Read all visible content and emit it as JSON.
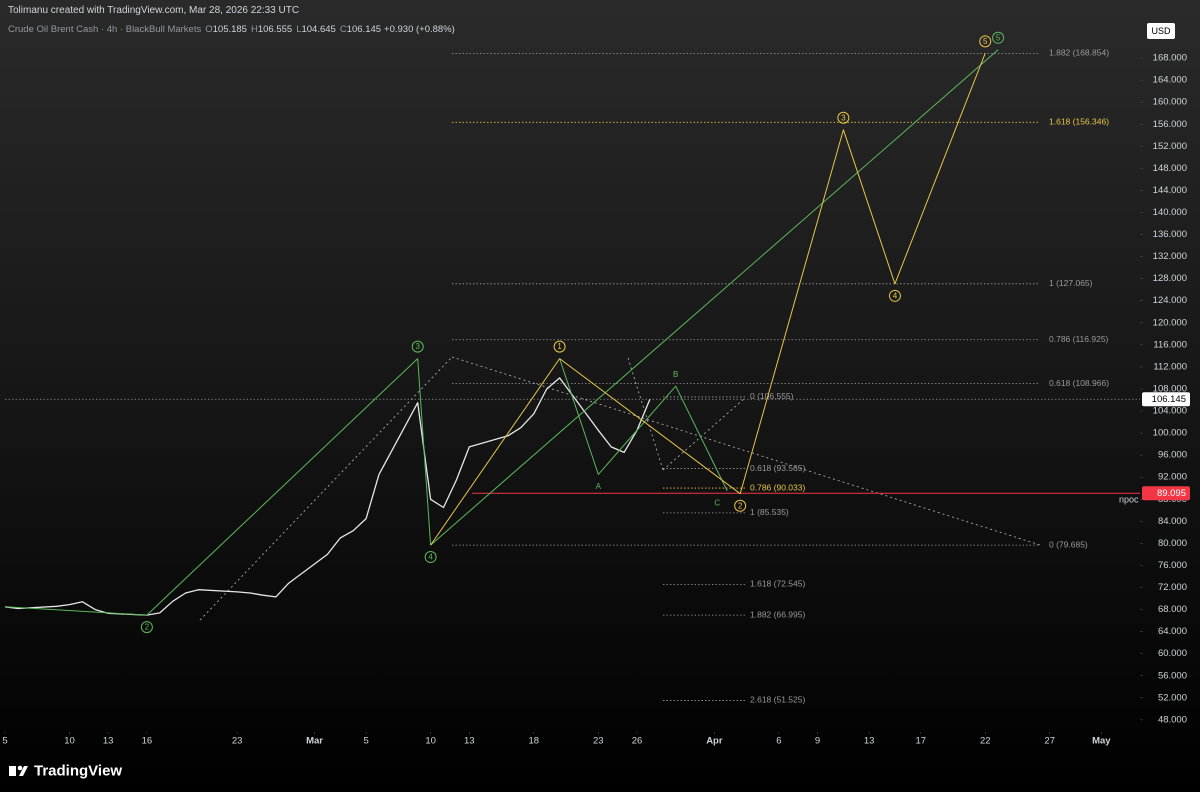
{
  "header": {
    "attribution": "Tolimanu created with TradingView.com, Mar 28, 2026 22:33 UTC",
    "symbol": "Crude Oil Brent Cash · 4h · BlackBull Markets",
    "ohlc": [
      {
        "key": "O",
        "value": "105.185"
      },
      {
        "key": "H",
        "value": "106.555"
      },
      {
        "key": "L",
        "value": "104.645"
      },
      {
        "key": "C",
        "value": "106.145"
      }
    ],
    "change": "+0.930 (+0.88%)"
  },
  "currency": "USD",
  "footer": {
    "brand": "TradingView"
  },
  "chart_data": {
    "type": "line",
    "xlim": [
      "Feb 5",
      "May 4"
    ],
    "xticks": [
      {
        "value": "Feb 5",
        "label": "5"
      },
      {
        "value": "Feb 10",
        "label": "10"
      },
      {
        "value": "Feb 13",
        "label": "13"
      },
      {
        "value": "Feb 16",
        "label": "16"
      },
      {
        "value": "Feb 23",
        "label": "23"
      },
      {
        "value": "Mar 1",
        "label": "Mar"
      },
      {
        "value": "Mar 5",
        "label": "5"
      },
      {
        "value": "Mar 10",
        "label": "10"
      },
      {
        "value": "Mar 13",
        "label": "13"
      },
      {
        "value": "Mar 18",
        "label": "18"
      },
      {
        "value": "Mar 23",
        "label": "23"
      },
      {
        "value": "Mar 26",
        "label": "26"
      },
      {
        "value": "Apr 1",
        "label": "Apr"
      },
      {
        "value": "Apr 6",
        "label": "6"
      },
      {
        "value": "Apr 9",
        "label": "9"
      },
      {
        "value": "Apr 13",
        "label": "13"
      },
      {
        "value": "Apr 17",
        "label": "17"
      },
      {
        "value": "Apr 22",
        "label": "22"
      },
      {
        "value": "Apr 27",
        "label": "27"
      },
      {
        "value": "May 1",
        "label": "May"
      }
    ],
    "ylim": [
      45.8,
      174.9
    ],
    "yticks": [
      {
        "value": 48,
        "label": "48.000"
      },
      {
        "value": 52,
        "label": "52.000"
      },
      {
        "value": 56,
        "label": "56.000"
      },
      {
        "value": 60,
        "label": "60.000"
      },
      {
        "value": 64,
        "label": "64.000"
      },
      {
        "value": 68,
        "label": "68.000"
      },
      {
        "value": 72,
        "label": "72.000"
      },
      {
        "value": 76,
        "label": "76.000"
      },
      {
        "value": 80,
        "label": "80.000"
      },
      {
        "value": 84,
        "label": "84.000"
      },
      {
        "value": 88,
        "label": "88.000"
      },
      {
        "value": 92,
        "label": "92.000"
      },
      {
        "value": 96,
        "label": "96.000"
      },
      {
        "value": 100,
        "label": "100.000"
      },
      {
        "value": 104,
        "label": "104.000"
      },
      {
        "value": 108,
        "label": "108.000"
      },
      {
        "value": 112,
        "label": "112.000"
      },
      {
        "value": 116,
        "label": "116.000"
      },
      {
        "value": 120,
        "label": "120.000"
      },
      {
        "value": 124,
        "label": "124.000"
      },
      {
        "value": 128,
        "label": "128.000"
      },
      {
        "value": 132,
        "label": "132.000"
      },
      {
        "value": 136,
        "label": "136.000"
      },
      {
        "value": 140,
        "label": "140.000"
      },
      {
        "value": 144,
        "label": "144.000"
      },
      {
        "value": 148,
        "label": "148.000"
      },
      {
        "value": 152,
        "label": "152.000"
      },
      {
        "value": 156,
        "label": "156.000"
      },
      {
        "value": 160,
        "label": "160.000"
      },
      {
        "value": 164,
        "label": "164.000"
      },
      {
        "value": 168,
        "label": "168.000"
      }
    ],
    "price": {
      "color": "#e6e6e6",
      "x": [
        "Feb 5",
        "Feb 6",
        "Feb 9",
        "Feb 10",
        "Feb 11",
        "Feb 12",
        "Feb 13",
        "Feb 16",
        "Feb 17",
        "Feb 18",
        "Feb 19",
        "Feb 20",
        "Feb 23",
        "Feb 24",
        "Feb 25",
        "Feb 26",
        "Feb 27",
        "Mar 2",
        "Mar 3",
        "Mar 4",
        "Mar 5",
        "Mar 6",
        "Mar 9",
        "Mar 10",
        "Mar 11",
        "Mar 12",
        "Mar 13",
        "Mar 16",
        "Mar 17",
        "Mar 18",
        "Mar 19",
        "Mar 20",
        "Mar 23",
        "Mar 24",
        "Mar 25",
        "Mar 26",
        "Mar 27"
      ],
      "values": [
        68.5,
        68.2,
        68.6,
        68.9,
        69.4,
        68.0,
        67.3,
        67.0,
        67.4,
        69.5,
        71.0,
        71.6,
        71.2,
        71.0,
        70.6,
        70.3,
        72.8,
        78.0,
        81.0,
        82.3,
        84.5,
        92.5,
        105.5,
        88.0,
        86.5,
        91.5,
        97.5,
        99.5,
        101.0,
        103.5,
        108.0,
        110.0,
        100.5,
        97.5,
        96.5,
        100.5,
        106.145
      ]
    },
    "waves": [
      {
        "color": "#5cb85c",
        "x": [
          "Feb 5",
          "Feb 16",
          "Mar 9",
          "Mar 10"
        ],
        "values": [
          68.5,
          67.0,
          113.5,
          79.7
        ],
        "labels": [
          null,
          "2",
          "3",
          "4"
        ]
      },
      {
        "color": "#5cb85c",
        "x": [
          "Mar 10",
          "Apr 23"
        ],
        "values": [
          79.685,
          169.5
        ],
        "labels": [
          null,
          "5"
        ]
      },
      {
        "color": "#5cb85c",
        "x": [
          "Mar 20",
          "Mar 23",
          "Mar 29",
          "Apr 2"
        ],
        "values": [
          113.5,
          92.5,
          108.5,
          89.5
        ],
        "labels": [
          null,
          "A",
          "B",
          "C"
        ]
      },
      {
        "color": "#e8c547",
        "x": [
          "Mar 10",
          "Mar 20",
          "Apr 3",
          "Apr 11",
          "Apr 15",
          "Apr 22"
        ],
        "values": [
          79.685,
          113.5,
          89.0,
          155.0,
          127.065,
          168.854
        ],
        "labels": [
          null,
          "1",
          "2",
          "3",
          "4",
          "5"
        ]
      }
    ],
    "levels": [
      {
        "label": "1.882 (168.854)",
        "value": 168.854,
        "color": "#9a9a9a"
      },
      {
        "label": "1.618 (156.346)",
        "value": 156.346,
        "color": "#e8c547"
      },
      {
        "label": "1 (127.065)",
        "value": 127.065,
        "color": "#9a9a9a"
      },
      {
        "label": "0.786 (116.925)",
        "value": 116.925,
        "color": "#9a9a9a"
      },
      {
        "label": "0.618 (108.966)",
        "value": 108.966,
        "color": "#9a9a9a"
      },
      {
        "label": "0 (79.685)",
        "value": 79.685,
        "color": "#9a9a9a"
      },
      {
        "label": "0 (106.555)",
        "value": 106.555,
        "color": "#9a9a9a"
      },
      {
        "label": "0.618 (93.565)",
        "value": 93.565,
        "color": "#9a9a9a"
      },
      {
        "label": "0.786 (90.033)",
        "value": 90.033,
        "color": "#e8c547"
      },
      {
        "label": "1 (85.535)",
        "value": 85.535,
        "color": "#9a9a9a"
      },
      {
        "label": "1.618 (72.545)",
        "value": 72.545,
        "color": "#9a9a9a"
      },
      {
        "label": "1.882 (66.995)",
        "value": 66.995,
        "color": "#9a9a9a"
      },
      {
        "label": "2.618 (51.525)",
        "value": 51.525,
        "color": "#9a9a9a"
      }
    ],
    "last_price": {
      "value": 106.145,
      "label": "106.145"
    },
    "npoc": {
      "name": "npoc",
      "value": 89.095,
      "label": "89.095",
      "color": "#f23645"
    }
  }
}
